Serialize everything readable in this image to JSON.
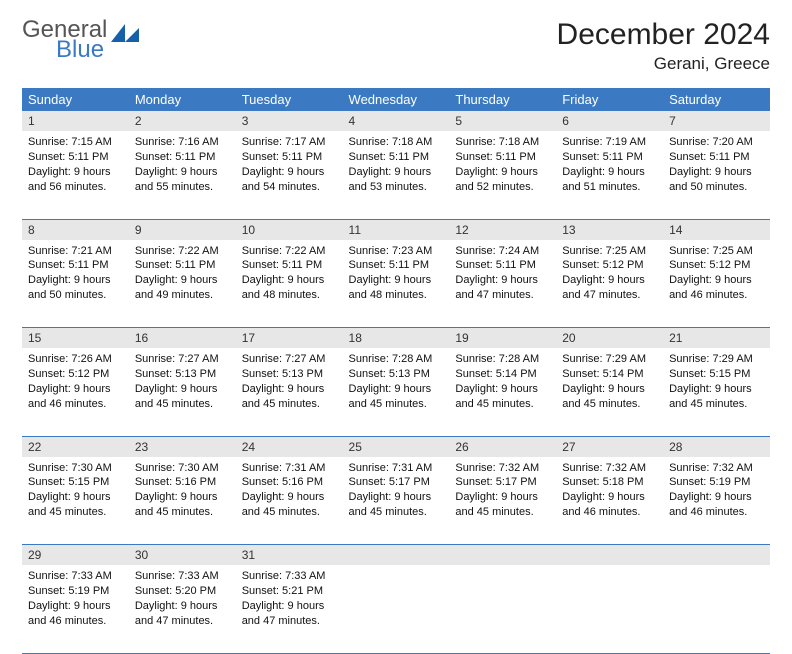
{
  "logo": {
    "text_general": "General",
    "text_blue": "Blue",
    "mark_color": "#1560a8"
  },
  "header": {
    "month_title": "December 2024",
    "location": "Gerani, Greece"
  },
  "colors": {
    "header_bg": "#3b7ac2",
    "header_text": "#ffffff",
    "daynum_bg": "#e7e7e7",
    "row_border": "#3b7ac2",
    "page_bg": "#ffffff",
    "body_text": "#111111"
  },
  "typography": {
    "title_fontsize_pt": 22,
    "location_fontsize_pt": 13,
    "header_cell_fontsize_pt": 10,
    "body_fontsize_pt": 8
  },
  "calendar": {
    "columns": [
      "Sunday",
      "Monday",
      "Tuesday",
      "Wednesday",
      "Thursday",
      "Friday",
      "Saturday"
    ],
    "weeks": [
      [
        {
          "day": "1",
          "sunrise": "7:15 AM",
          "sunset": "5:11 PM",
          "daylight": "9 hours and 56 minutes."
        },
        {
          "day": "2",
          "sunrise": "7:16 AM",
          "sunset": "5:11 PM",
          "daylight": "9 hours and 55 minutes."
        },
        {
          "day": "3",
          "sunrise": "7:17 AM",
          "sunset": "5:11 PM",
          "daylight": "9 hours and 54 minutes."
        },
        {
          "day": "4",
          "sunrise": "7:18 AM",
          "sunset": "5:11 PM",
          "daylight": "9 hours and 53 minutes."
        },
        {
          "day": "5",
          "sunrise": "7:18 AM",
          "sunset": "5:11 PM",
          "daylight": "9 hours and 52 minutes."
        },
        {
          "day": "6",
          "sunrise": "7:19 AM",
          "sunset": "5:11 PM",
          "daylight": "9 hours and 51 minutes."
        },
        {
          "day": "7",
          "sunrise": "7:20 AM",
          "sunset": "5:11 PM",
          "daylight": "9 hours and 50 minutes."
        }
      ],
      [
        {
          "day": "8",
          "sunrise": "7:21 AM",
          "sunset": "5:11 PM",
          "daylight": "9 hours and 50 minutes."
        },
        {
          "day": "9",
          "sunrise": "7:22 AM",
          "sunset": "5:11 PM",
          "daylight": "9 hours and 49 minutes."
        },
        {
          "day": "10",
          "sunrise": "7:22 AM",
          "sunset": "5:11 PM",
          "daylight": "9 hours and 48 minutes."
        },
        {
          "day": "11",
          "sunrise": "7:23 AM",
          "sunset": "5:11 PM",
          "daylight": "9 hours and 48 minutes."
        },
        {
          "day": "12",
          "sunrise": "7:24 AM",
          "sunset": "5:11 PM",
          "daylight": "9 hours and 47 minutes."
        },
        {
          "day": "13",
          "sunrise": "7:25 AM",
          "sunset": "5:12 PM",
          "daylight": "9 hours and 47 minutes."
        },
        {
          "day": "14",
          "sunrise": "7:25 AM",
          "sunset": "5:12 PM",
          "daylight": "9 hours and 46 minutes."
        }
      ],
      [
        {
          "day": "15",
          "sunrise": "7:26 AM",
          "sunset": "5:12 PM",
          "daylight": "9 hours and 46 minutes."
        },
        {
          "day": "16",
          "sunrise": "7:27 AM",
          "sunset": "5:13 PM",
          "daylight": "9 hours and 45 minutes."
        },
        {
          "day": "17",
          "sunrise": "7:27 AM",
          "sunset": "5:13 PM",
          "daylight": "9 hours and 45 minutes."
        },
        {
          "day": "18",
          "sunrise": "7:28 AM",
          "sunset": "5:13 PM",
          "daylight": "9 hours and 45 minutes."
        },
        {
          "day": "19",
          "sunrise": "7:28 AM",
          "sunset": "5:14 PM",
          "daylight": "9 hours and 45 minutes."
        },
        {
          "day": "20",
          "sunrise": "7:29 AM",
          "sunset": "5:14 PM",
          "daylight": "9 hours and 45 minutes."
        },
        {
          "day": "21",
          "sunrise": "7:29 AM",
          "sunset": "5:15 PM",
          "daylight": "9 hours and 45 minutes."
        }
      ],
      [
        {
          "day": "22",
          "sunrise": "7:30 AM",
          "sunset": "5:15 PM",
          "daylight": "9 hours and 45 minutes."
        },
        {
          "day": "23",
          "sunrise": "7:30 AM",
          "sunset": "5:16 PM",
          "daylight": "9 hours and 45 minutes."
        },
        {
          "day": "24",
          "sunrise": "7:31 AM",
          "sunset": "5:16 PM",
          "daylight": "9 hours and 45 minutes."
        },
        {
          "day": "25",
          "sunrise": "7:31 AM",
          "sunset": "5:17 PM",
          "daylight": "9 hours and 45 minutes."
        },
        {
          "day": "26",
          "sunrise": "7:32 AM",
          "sunset": "5:17 PM",
          "daylight": "9 hours and 45 minutes."
        },
        {
          "day": "27",
          "sunrise": "7:32 AM",
          "sunset": "5:18 PM",
          "daylight": "9 hours and 46 minutes."
        },
        {
          "day": "28",
          "sunrise": "7:32 AM",
          "sunset": "5:19 PM",
          "daylight": "9 hours and 46 minutes."
        }
      ],
      [
        {
          "day": "29",
          "sunrise": "7:33 AM",
          "sunset": "5:19 PM",
          "daylight": "9 hours and 46 minutes."
        },
        {
          "day": "30",
          "sunrise": "7:33 AM",
          "sunset": "5:20 PM",
          "daylight": "9 hours and 47 minutes."
        },
        {
          "day": "31",
          "sunrise": "7:33 AM",
          "sunset": "5:21 PM",
          "daylight": "9 hours and 47 minutes."
        },
        null,
        null,
        null,
        null
      ]
    ],
    "labels": {
      "sunrise": "Sunrise:",
      "sunset": "Sunset:",
      "daylight": "Daylight:"
    }
  }
}
